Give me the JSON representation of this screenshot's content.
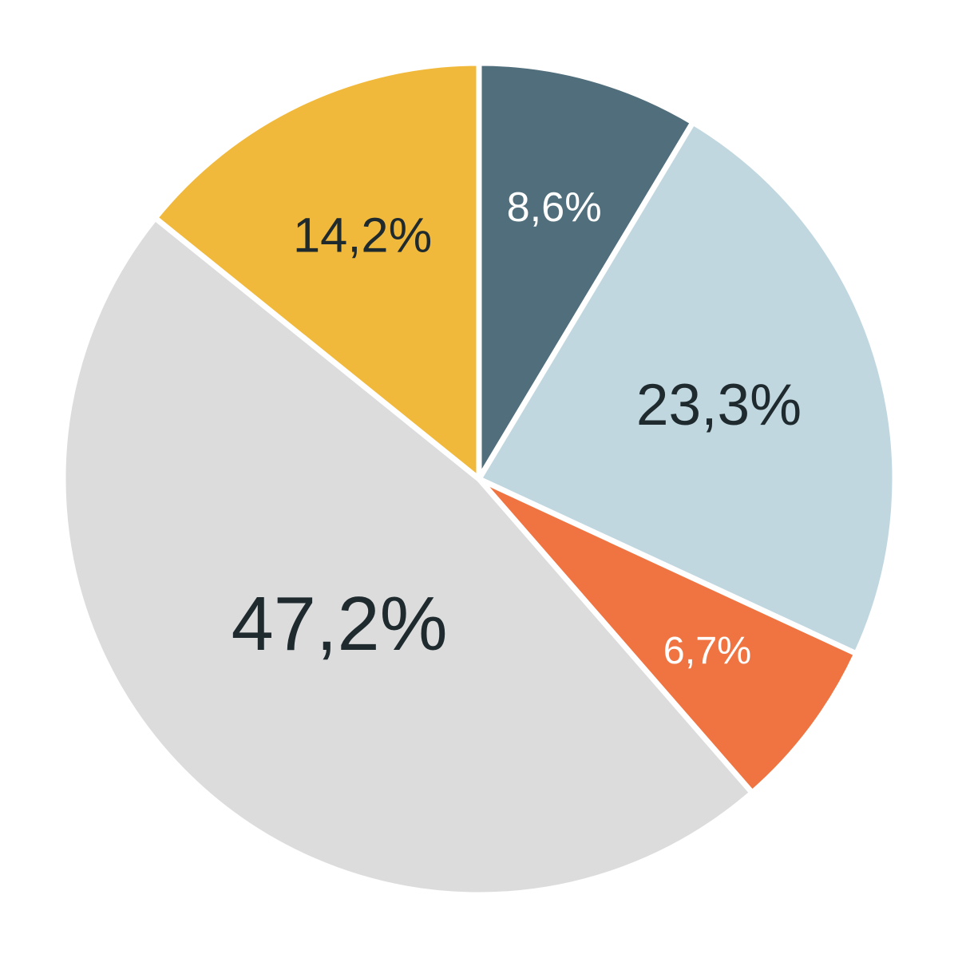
{
  "chart_data": {
    "type": "pie",
    "values": [
      8.6,
      23.3,
      6.7,
      47.2,
      14.2
    ],
    "value_labels": [
      "8,6%",
      "23,3%",
      "6,7%",
      "47,2%",
      "14,2%"
    ],
    "colors": [
      "#506e7b",
      "#c1d7e0",
      "#f07441",
      "#dcdcdc",
      "#f1b93b"
    ],
    "label_colors": [
      "#ffffff",
      "#1e2a2e",
      "#ffffff",
      "#1e2a2e",
      "#1e2a2e"
    ]
  }
}
